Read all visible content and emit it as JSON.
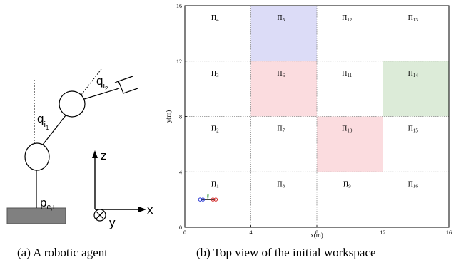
{
  "panel_a": {
    "caption": "(a) A robotic agent",
    "labels": {
      "q1": "q",
      "q1_sub": "i",
      "q1_sub2": "1",
      "q2": "q",
      "q2_sub": "i",
      "q2_sub2": "2",
      "p": "p",
      "p_sub": "c,i",
      "z": "z",
      "x": "x",
      "y": "y"
    }
  },
  "panel_b": {
    "caption": "(b) Top view of the initial workspace",
    "xlabel": "x(m)",
    "ylabel": "y(m)",
    "xticks": [
      "0",
      "4",
      "8",
      "12",
      "16"
    ],
    "yticks": [
      "0",
      "4",
      "8",
      "12",
      "16"
    ],
    "robot_label": "g"
  },
  "chart_data": {
    "type": "heatmap",
    "xlabel": "x(m)",
    "ylabel": "y(m)",
    "xlim": [
      0,
      16
    ],
    "ylim": [
      0,
      16
    ],
    "grid": true,
    "cells": [
      {
        "label": "Π",
        "index": "1",
        "x": [
          0,
          4
        ],
        "y": [
          0,
          4
        ],
        "fill": "none"
      },
      {
        "label": "Π",
        "index": "2",
        "x": [
          0,
          4
        ],
        "y": [
          4,
          8
        ],
        "fill": "none"
      },
      {
        "label": "Π",
        "index": "3",
        "x": [
          0,
          4
        ],
        "y": [
          8,
          12
        ],
        "fill": "none"
      },
      {
        "label": "Π",
        "index": "4",
        "x": [
          0,
          4
        ],
        "y": [
          12,
          16
        ],
        "fill": "none"
      },
      {
        "label": "Π",
        "index": "5",
        "x": [
          4,
          8
        ],
        "y": [
          12,
          16
        ],
        "fill": "#dcdcf7"
      },
      {
        "label": "Π",
        "index": "6",
        "x": [
          4,
          8
        ],
        "y": [
          8,
          12
        ],
        "fill": "#fbdcdf"
      },
      {
        "label": "Π",
        "index": "7",
        "x": [
          4,
          8
        ],
        "y": [
          4,
          8
        ],
        "fill": "none"
      },
      {
        "label": "Π",
        "index": "8",
        "x": [
          4,
          8
        ],
        "y": [
          0,
          4
        ],
        "fill": "none"
      },
      {
        "label": "Π",
        "index": "9",
        "x": [
          8,
          12
        ],
        "y": [
          0,
          4
        ],
        "fill": "none"
      },
      {
        "label": "Π",
        "index": "10",
        "x": [
          8,
          12
        ],
        "y": [
          4,
          8
        ],
        "fill": "#fbdcdf"
      },
      {
        "label": "Π",
        "index": "11",
        "x": [
          8,
          12
        ],
        "y": [
          8,
          12
        ],
        "fill": "none"
      },
      {
        "label": "Π",
        "index": "12",
        "x": [
          8,
          12
        ],
        "y": [
          12,
          16
        ],
        "fill": "none"
      },
      {
        "label": "Π",
        "index": "13",
        "x": [
          12,
          16
        ],
        "y": [
          12,
          16
        ],
        "fill": "none"
      },
      {
        "label": "Π",
        "index": "14",
        "x": [
          12,
          16
        ],
        "y": [
          8,
          12
        ],
        "fill": "#dcebd8"
      },
      {
        "label": "Π",
        "index": "15",
        "x": [
          12,
          16
        ],
        "y": [
          4,
          8
        ],
        "fill": "none"
      },
      {
        "label": "Π",
        "index": "16",
        "x": [
          12,
          16
        ],
        "y": [
          0,
          4
        ],
        "fill": "none"
      }
    ],
    "robot": {
      "x": 1.4,
      "y": 2.0
    }
  }
}
